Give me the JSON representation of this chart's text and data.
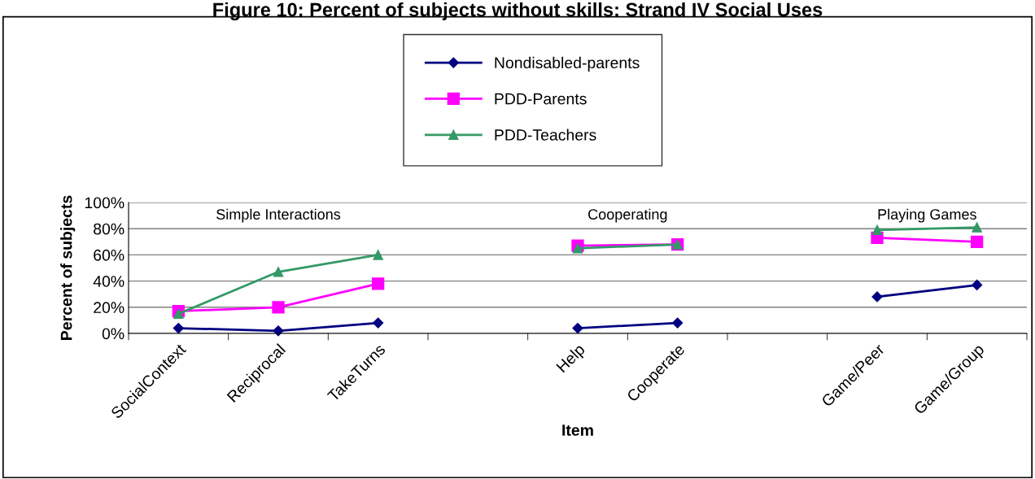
{
  "chart_data": {
    "type": "line",
    "title": "Figure 10: Percent of subjects without skills: Strand IV Social Uses",
    "xlabel": "Item",
    "ylabel": "Percent of subjects",
    "categories": [
      "SocialContext",
      "Reciprocal",
      "TakeTurns",
      null,
      "Help",
      "Cooperate",
      null,
      "Game/Peer",
      "Game/Group"
    ],
    "series": [
      {
        "name": "Nondisabled-parents",
        "color": "#000080",
        "marker": "diamond",
        "values": [
          4,
          2,
          8,
          null,
          4,
          8,
          null,
          28,
          37
        ]
      },
      {
        "name": "PDD-Parents",
        "color": "#ff00ff",
        "marker": "square",
        "values": [
          17,
          20,
          38,
          null,
          67,
          68,
          null,
          73,
          70
        ]
      },
      {
        "name": "PDD-Teachers",
        "color": "#339966",
        "marker": "triangle",
        "values": [
          15,
          47,
          60,
          null,
          65,
          68,
          null,
          79,
          81
        ]
      }
    ],
    "ylim": [
      0,
      100
    ],
    "yticks": [
      {
        "value": 0,
        "label": "0%"
      },
      {
        "value": 20,
        "label": "20%"
      },
      {
        "value": 40,
        "label": "40%"
      },
      {
        "value": 60,
        "label": "60%"
      },
      {
        "value": 80,
        "label": "80%"
      },
      {
        "value": 100,
        "label": "100%"
      }
    ],
    "grid": "y",
    "legend": "top",
    "annotations": [
      "Simple Interactions",
      "Cooperating",
      "Playing Games"
    ]
  }
}
